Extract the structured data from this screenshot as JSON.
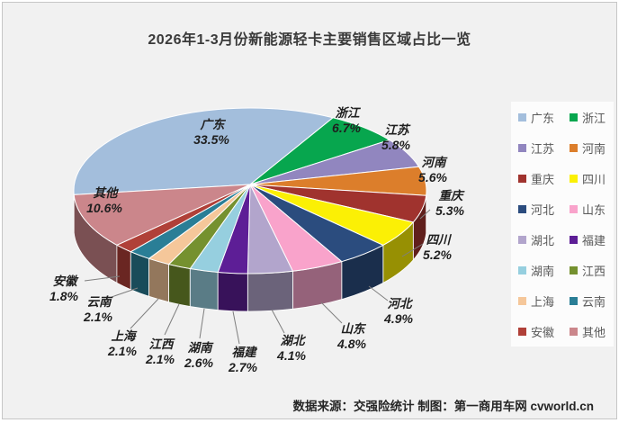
{
  "title": "2026年1-3月份新能源轻卡主要销售区域占比一览",
  "footer": "数据来源：交强险统计  制图：第一商用车网 cvworld.cn",
  "chart_data": {
    "type": "pie",
    "style": "3d",
    "title": "2026年1-3月份新能源轻卡主要销售区域占比一览",
    "unit": "%",
    "label_format": "name + percent",
    "legend_position": "right",
    "categories": [
      "广东",
      "浙江",
      "江苏",
      "河南",
      "重庆",
      "四川",
      "河北",
      "山东",
      "湖北",
      "福建",
      "湖南",
      "江西",
      "上海",
      "云南",
      "安徽",
      "其他"
    ],
    "values": [
      33.5,
      6.7,
      5.8,
      5.6,
      5.3,
      5.2,
      4.9,
      4.8,
      4.1,
      2.7,
      2.6,
      2.1,
      2.1,
      2.1,
      1.8,
      10.6
    ],
    "colors": [
      "#A3BEDC",
      "#07A64E",
      "#9186BF",
      "#DC7E2B",
      "#A0332E",
      "#FBF005",
      "#2B4C7E",
      "#F9A3CB",
      "#B2A5CC",
      "#5D1E96",
      "#96CFDF",
      "#75912F",
      "#F5C79A",
      "#2A7E96",
      "#B04038",
      "#CB868B"
    ],
    "percent_labels": [
      "33.5%",
      "6.7%",
      "5.8%",
      "5.6%",
      "5.3%",
      "5.2%",
      "4.9%",
      "4.8%",
      "4.1%",
      "2.7%",
      "2.6%",
      "2.1%",
      "2.1%",
      "2.1%",
      "1.8%",
      "10.6%"
    ]
  },
  "colors": {
    "canvas_bg": "#f1f1f1",
    "legend_bg": "#fcfcfc",
    "label_text": "#1f1f1f",
    "leader_line": "#7f7f7f"
  }
}
